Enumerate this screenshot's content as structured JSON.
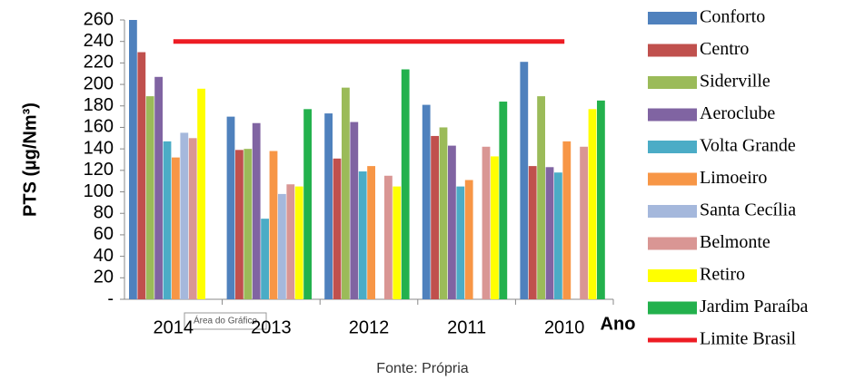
{
  "chart_data": {
    "type": "bar",
    "ylabel": "PTS (µg/Nm³)",
    "xlabel": "Ano",
    "source": "Fonte: Própria",
    "annotation": "Área do Gráfico",
    "categories": [
      "2014",
      "2013",
      "2012",
      "2011",
      "2010"
    ],
    "ylim": [
      0,
      260
    ],
    "yticks": [
      {
        "value": 0,
        "label": "-"
      },
      20,
      40,
      60,
      80,
      100,
      120,
      140,
      160,
      180,
      200,
      220,
      240,
      260
    ],
    "series": [
      {
        "name": "Conforto",
        "color": "#4f81bd",
        "values": [
          260,
          170,
          173,
          181,
          221
        ]
      },
      {
        "name": "Centro",
        "color": "#c0504d",
        "values": [
          230,
          139,
          131,
          152,
          124
        ]
      },
      {
        "name": "Siderville",
        "color": "#9bbb59",
        "values": [
          189,
          140,
          197,
          160,
          189
        ]
      },
      {
        "name": "Aeroclube",
        "color": "#8064a2",
        "values": [
          207,
          164,
          165,
          143,
          123
        ]
      },
      {
        "name": "Volta Grande",
        "color": "#4bacc6",
        "values": [
          147,
          75,
          119,
          105,
          118
        ]
      },
      {
        "name": "Limoeiro",
        "color": "#f79646",
        "values": [
          132,
          138,
          124,
          111,
          147
        ]
      },
      {
        "name": "Santa Cecília",
        "color": "#a5b8dc",
        "values": [
          155,
          98,
          null,
          null,
          null
        ]
      },
      {
        "name": "Belmonte",
        "color": "#d99694",
        "values": [
          150,
          107,
          115,
          142,
          142
        ]
      },
      {
        "name": "Retiro",
        "color": "#ffff00",
        "values": [
          196,
          105,
          105,
          133,
          177
        ]
      },
      {
        "name": "Jardim Paraíba",
        "color": "#23b14d",
        "values": [
          null,
          177,
          214,
          184,
          185
        ]
      },
      {
        "name": "Limite Brasil",
        "type": "line",
        "color": "#ed1c24",
        "values": [
          240,
          240,
          240,
          240,
          240
        ]
      }
    ]
  }
}
